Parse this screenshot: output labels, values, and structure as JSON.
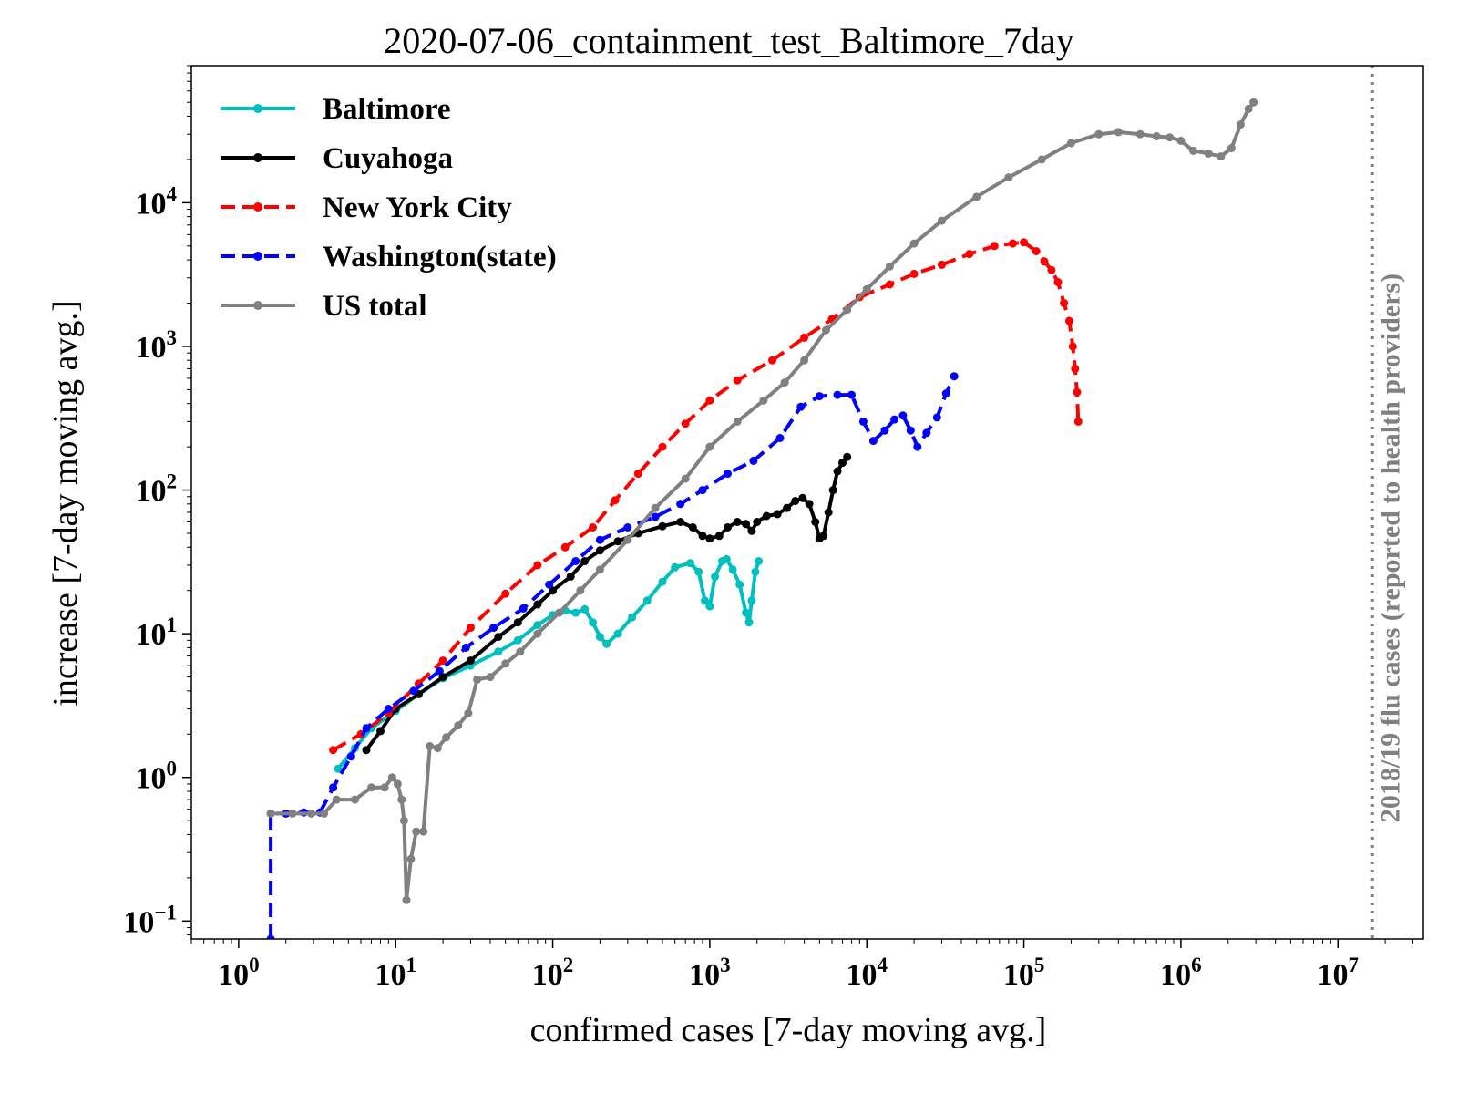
{
  "chart_data": {
    "type": "line",
    "title": "2020-07-06_containment_test_Baltimore_7day",
    "xlabel": "confirmed cases [7-day moving avg.]",
    "ylabel": "increase [7-day moving avg.]",
    "xscale": "log",
    "yscale": "log",
    "xlim": [
      0.5,
      35000000
    ],
    "ylim": [
      0.075,
      90000
    ],
    "xticks": [
      1,
      10,
      100,
      1000,
      10000,
      100000,
      1000000,
      10000000
    ],
    "yticks": [
      0.1,
      1,
      10,
      100,
      1000,
      10000
    ],
    "legend_position": "top-left",
    "reference_line": {
      "x": 16500000,
      "label": "2018/19 flu cases (reported to health providers)",
      "color": "#808080"
    },
    "series": [
      {
        "name": "Baltimore",
        "color": "#00bfbf",
        "dash": false,
        "points": [
          [
            4.3,
            1.15
          ],
          [
            5.5,
            1.6
          ],
          [
            7,
            2.2
          ],
          [
            10,
            2.9
          ],
          [
            14,
            3.8
          ],
          [
            20,
            4.9
          ],
          [
            30,
            6
          ],
          [
            45,
            7.5
          ],
          [
            60,
            9
          ],
          [
            80,
            11.5
          ],
          [
            100,
            13.5
          ],
          [
            120,
            14.5
          ],
          [
            140,
            14
          ],
          [
            160,
            14.8
          ],
          [
            180,
            12
          ],
          [
            200,
            9.5
          ],
          [
            220,
            8.5
          ],
          [
            260,
            10
          ],
          [
            320,
            13
          ],
          [
            400,
            17
          ],
          [
            500,
            23
          ],
          [
            600,
            29
          ],
          [
            750,
            31
          ],
          [
            850,
            27
          ],
          [
            930,
            17
          ],
          [
            1000,
            15.5
          ],
          [
            1080,
            25
          ],
          [
            1200,
            32
          ],
          [
            1280,
            33
          ],
          [
            1400,
            28
          ],
          [
            1550,
            22
          ],
          [
            1700,
            14
          ],
          [
            1780,
            12
          ],
          [
            1850,
            17
          ],
          [
            1950,
            27
          ],
          [
            2050,
            32
          ]
        ]
      },
      {
        "name": "Cuyahoga",
        "color": "#000000",
        "dash": false,
        "points": [
          [
            6.5,
            1.55
          ],
          [
            8,
            2.1
          ],
          [
            10,
            3
          ],
          [
            14,
            3.8
          ],
          [
            20,
            5
          ],
          [
            30,
            6.5
          ],
          [
            45,
            9.5
          ],
          [
            60,
            12
          ],
          [
            80,
            16
          ],
          [
            100,
            20
          ],
          [
            130,
            25
          ],
          [
            160,
            32
          ],
          [
            200,
            38
          ],
          [
            260,
            44
          ],
          [
            350,
            50
          ],
          [
            500,
            56
          ],
          [
            650,
            60
          ],
          [
            780,
            55
          ],
          [
            900,
            48
          ],
          [
            1000,
            46
          ],
          [
            1150,
            48
          ],
          [
            1300,
            55
          ],
          [
            1500,
            60
          ],
          [
            1700,
            58
          ],
          [
            1850,
            52
          ],
          [
            2000,
            60
          ],
          [
            2300,
            66
          ],
          [
            2700,
            68
          ],
          [
            3100,
            75
          ],
          [
            3500,
            84
          ],
          [
            3900,
            88
          ],
          [
            4300,
            80
          ],
          [
            4700,
            60
          ],
          [
            5000,
            46
          ],
          [
            5300,
            48
          ],
          [
            5700,
            70
          ],
          [
            6100,
            100
          ],
          [
            6500,
            135
          ],
          [
            7000,
            155
          ],
          [
            7500,
            170
          ]
        ]
      },
      {
        "name": "New York City",
        "color": "#ff0000",
        "dash": true,
        "points": [
          [
            4,
            1.55
          ],
          [
            6,
            2
          ],
          [
            9,
            2.8
          ],
          [
            14,
            4.5
          ],
          [
            20,
            6.5
          ],
          [
            30,
            11
          ],
          [
            50,
            19
          ],
          [
            80,
            30
          ],
          [
            120,
            40
          ],
          [
            180,
            55
          ],
          [
            250,
            85
          ],
          [
            350,
            130
          ],
          [
            500,
            200
          ],
          [
            700,
            290
          ],
          [
            1000,
            420
          ],
          [
            1500,
            580
          ],
          [
            2500,
            800
          ],
          [
            4000,
            1150
          ],
          [
            6000,
            1550
          ],
          [
            9000,
            2200
          ],
          [
            14000,
            2700
          ],
          [
            20000,
            3200
          ],
          [
            30000,
            3700
          ],
          [
            45000,
            4400
          ],
          [
            65000,
            5000
          ],
          [
            85000,
            5200
          ],
          [
            100000,
            5300
          ],
          [
            120000,
            4600
          ],
          [
            135000,
            3900
          ],
          [
            150000,
            3400
          ],
          [
            165000,
            2800
          ],
          [
            180000,
            2000
          ],
          [
            195000,
            1500
          ],
          [
            205000,
            1000
          ],
          [
            212000,
            700
          ],
          [
            218000,
            480
          ],
          [
            222000,
            300
          ]
        ]
      },
      {
        "name": "Washington(state)",
        "color": "#0000ff",
        "dash": true,
        "points": [
          [
            1.6,
            0.075
          ],
          [
            1.6,
            0.56
          ],
          [
            2,
            0.56
          ],
          [
            2.6,
            0.57
          ],
          [
            3.3,
            0.57
          ],
          [
            4,
            0.85
          ],
          [
            5.2,
            1.4
          ],
          [
            6.5,
            2.2
          ],
          [
            9,
            3
          ],
          [
            13,
            4
          ],
          [
            19,
            5.5
          ],
          [
            28,
            8
          ],
          [
            42,
            11
          ],
          [
            65,
            15
          ],
          [
            95,
            22
          ],
          [
            140,
            32
          ],
          [
            200,
            45
          ],
          [
            300,
            55
          ],
          [
            450,
            65
          ],
          [
            650,
            80
          ],
          [
            900,
            100
          ],
          [
            1300,
            130
          ],
          [
            1900,
            160
          ],
          [
            2800,
            230
          ],
          [
            3800,
            380
          ],
          [
            5000,
            450
          ],
          [
            6500,
            460
          ],
          [
            8000,
            460
          ],
          [
            9500,
            300
          ],
          [
            11000,
            220
          ],
          [
            13000,
            260
          ],
          [
            15000,
            310
          ],
          [
            17000,
            330
          ],
          [
            19000,
            260
          ],
          [
            21000,
            200
          ],
          [
            24000,
            250
          ],
          [
            28000,
            320
          ],
          [
            32000,
            470
          ],
          [
            36000,
            620
          ]
        ]
      },
      {
        "name": "US total",
        "color": "#808080",
        "dash": false,
        "points": [
          [
            1.6,
            0.56
          ],
          [
            2.2,
            0.56
          ],
          [
            2.9,
            0.56
          ],
          [
            3.5,
            0.56
          ],
          [
            4.2,
            0.7
          ],
          [
            5.5,
            0.7
          ],
          [
            7,
            0.85
          ],
          [
            8.5,
            0.85
          ],
          [
            9.5,
            1
          ],
          [
            10.3,
            0.9
          ],
          [
            10.9,
            0.7
          ],
          [
            11.3,
            0.5
          ],
          [
            11.7,
            0.14
          ],
          [
            12.5,
            0.27
          ],
          [
            13.5,
            0.42
          ],
          [
            15,
            0.42
          ],
          [
            16.5,
            1.65
          ],
          [
            18.5,
            1.6
          ],
          [
            21,
            1.9
          ],
          [
            25,
            2.3
          ],
          [
            29,
            2.8
          ],
          [
            33,
            4.8
          ],
          [
            40,
            5
          ],
          [
            50,
            6.2
          ],
          [
            62,
            7.5
          ],
          [
            80,
            10
          ],
          [
            110,
            14
          ],
          [
            150,
            20
          ],
          [
            200,
            28
          ],
          [
            300,
            45
          ],
          [
            450,
            75
          ],
          [
            700,
            120
          ],
          [
            1000,
            200
          ],
          [
            1500,
            300
          ],
          [
            2200,
            420
          ],
          [
            3000,
            560
          ],
          [
            4000,
            800
          ],
          [
            5500,
            1300
          ],
          [
            7500,
            1800
          ],
          [
            10000,
            2500
          ],
          [
            14000,
            3600
          ],
          [
            20000,
            5200
          ],
          [
            30000,
            7500
          ],
          [
            50000,
            11000
          ],
          [
            80000,
            15000
          ],
          [
            130000,
            20000
          ],
          [
            200000,
            26000
          ],
          [
            300000,
            30000
          ],
          [
            400000,
            31000
          ],
          [
            550000,
            30000
          ],
          [
            700000,
            29000
          ],
          [
            850000,
            28500
          ],
          [
            1000000,
            27000
          ],
          [
            1200000,
            23000
          ],
          [
            1500000,
            22000
          ],
          [
            1800000,
            21000
          ],
          [
            2100000,
            24000
          ],
          [
            2400000,
            35000
          ],
          [
            2700000,
            45000
          ],
          [
            2900000,
            50000
          ]
        ]
      }
    ]
  }
}
